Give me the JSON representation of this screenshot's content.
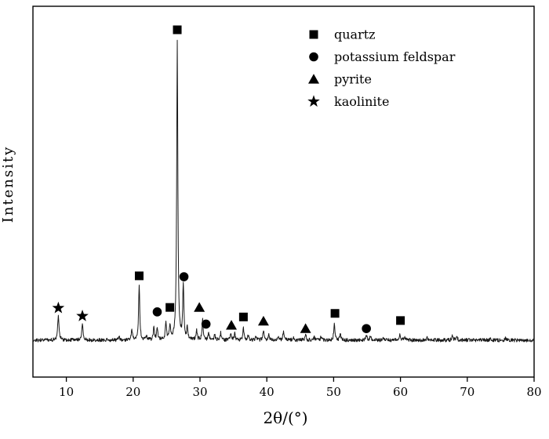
{
  "colors": {
    "line": "#1a1a1a",
    "marker": "#000000",
    "frame": "#000000",
    "background": "#ffffff"
  },
  "chart_data": {
    "type": "line",
    "title": "",
    "xlabel": "2θ/(°)",
    "ylabel": "Intensity",
    "xlim": [
      5,
      80
    ],
    "ylim": [
      0,
      1.12
    ],
    "grid": false,
    "legend_position": "upper-right",
    "x_ticks": [
      10,
      20,
      30,
      40,
      50,
      60,
      70,
      80
    ],
    "y_ticks": [],
    "legend": [
      {
        "marker": "square",
        "label": "quartz"
      },
      {
        "marker": "circle",
        "label": "potassium feldspar"
      },
      {
        "marker": "triangle",
        "label": "pyrite"
      },
      {
        "marker": "star",
        "label": "kaolinite"
      }
    ],
    "baseline": 0.008,
    "noise_amplitude": 0.012,
    "peaks": [
      {
        "x": 8.8,
        "h": 0.082,
        "w": 0.12
      },
      {
        "x": 12.4,
        "h": 0.056,
        "w": 0.12
      },
      {
        "x": 17.9,
        "h": 0.016,
        "w": 0.1
      },
      {
        "x": 19.8,
        "h": 0.035,
        "w": 0.1
      },
      {
        "x": 20.9,
        "h": 0.19,
        "w": 0.1
      },
      {
        "x": 22.0,
        "h": 0.014,
        "w": 0.1
      },
      {
        "x": 23.1,
        "h": 0.042,
        "w": 0.1
      },
      {
        "x": 23.6,
        "h": 0.038,
        "w": 0.1
      },
      {
        "x": 24.9,
        "h": 0.062,
        "w": 0.1
      },
      {
        "x": 25.5,
        "h": 0.048,
        "w": 0.1
      },
      {
        "x": 26.6,
        "h": 1.0,
        "w": 0.1
      },
      {
        "x": 27.5,
        "h": 0.185,
        "w": 0.1
      },
      {
        "x": 28.1,
        "h": 0.04,
        "w": 0.1
      },
      {
        "x": 29.5,
        "h": 0.033,
        "w": 0.1
      },
      {
        "x": 30.4,
        "h": 0.068,
        "w": 0.1
      },
      {
        "x": 31.3,
        "h": 0.024,
        "w": 0.1
      },
      {
        "x": 32.2,
        "h": 0.018,
        "w": 0.1
      },
      {
        "x": 33.1,
        "h": 0.024,
        "w": 0.1
      },
      {
        "x": 34.6,
        "h": 0.018,
        "w": 0.1
      },
      {
        "x": 35.2,
        "h": 0.024,
        "w": 0.1
      },
      {
        "x": 36.5,
        "h": 0.04,
        "w": 0.1
      },
      {
        "x": 37.2,
        "h": 0.02,
        "w": 0.1
      },
      {
        "x": 38.4,
        "h": 0.014,
        "w": 0.1
      },
      {
        "x": 39.5,
        "h": 0.034,
        "w": 0.1
      },
      {
        "x": 40.3,
        "h": 0.022,
        "w": 0.1
      },
      {
        "x": 41.7,
        "h": 0.014,
        "w": 0.1
      },
      {
        "x": 42.5,
        "h": 0.03,
        "w": 0.1
      },
      {
        "x": 44.0,
        "h": 0.012,
        "w": 0.1
      },
      {
        "x": 45.8,
        "h": 0.02,
        "w": 0.1
      },
      {
        "x": 47.1,
        "h": 0.012,
        "w": 0.1
      },
      {
        "x": 48.1,
        "h": 0.012,
        "w": 0.1
      },
      {
        "x": 50.1,
        "h": 0.055,
        "w": 0.1
      },
      {
        "x": 51.0,
        "h": 0.02,
        "w": 0.1
      },
      {
        "x": 54.9,
        "h": 0.016,
        "w": 0.1
      },
      {
        "x": 55.5,
        "h": 0.012,
        "w": 0.1
      },
      {
        "x": 57.5,
        "h": 0.008,
        "w": 0.1
      },
      {
        "x": 59.9,
        "h": 0.022,
        "w": 0.1
      },
      {
        "x": 60.6,
        "h": 0.01,
        "w": 0.1
      },
      {
        "x": 64.0,
        "h": 0.008,
        "w": 0.1
      },
      {
        "x": 67.8,
        "h": 0.018,
        "w": 0.1
      },
      {
        "x": 68.4,
        "h": 0.015,
        "w": 0.1
      },
      {
        "x": 73.5,
        "h": 0.007,
        "w": 0.1
      },
      {
        "x": 75.7,
        "h": 0.007,
        "w": 0.1
      }
    ],
    "annotations": [
      {
        "mineral": "kaolinite",
        "marker": "star",
        "x": 8.8,
        "y": 0.116
      },
      {
        "mineral": "kaolinite",
        "marker": "star",
        "x": 12.4,
        "y": 0.089
      },
      {
        "mineral": "quartz",
        "marker": "square",
        "x": 20.9,
        "y": 0.224
      },
      {
        "mineral": "potassium feldspar",
        "marker": "circle",
        "x": 23.6,
        "y": 0.103
      },
      {
        "mineral": "quartz",
        "marker": "square",
        "x": 25.5,
        "y": 0.118
      },
      {
        "mineral": "quartz",
        "marker": "square",
        "x": 26.6,
        "y": 1.05
      },
      {
        "mineral": "potassium feldspar",
        "marker": "circle",
        "x": 27.6,
        "y": 0.221
      },
      {
        "mineral": "pyrite",
        "marker": "triangle",
        "x": 29.9,
        "y": 0.118
      },
      {
        "mineral": "potassium feldspar",
        "marker": "circle",
        "x": 30.9,
        "y": 0.062
      },
      {
        "mineral": "pyrite",
        "marker": "triangle",
        "x": 34.7,
        "y": 0.058
      },
      {
        "mineral": "quartz",
        "marker": "square",
        "x": 36.5,
        "y": 0.086
      },
      {
        "mineral": "pyrite",
        "marker": "triangle",
        "x": 39.5,
        "y": 0.072
      },
      {
        "mineral": "pyrite",
        "marker": "triangle",
        "x": 45.8,
        "y": 0.047
      },
      {
        "mineral": "quartz",
        "marker": "square",
        "x": 50.2,
        "y": 0.098
      },
      {
        "mineral": "potassium feldspar",
        "marker": "circle",
        "x": 54.9,
        "y": 0.047
      },
      {
        "mineral": "quartz",
        "marker": "square",
        "x": 60.0,
        "y": 0.074
      }
    ]
  }
}
